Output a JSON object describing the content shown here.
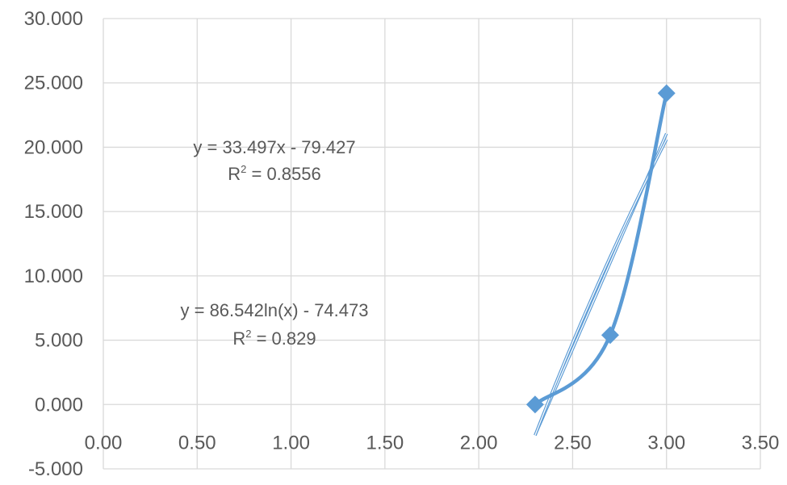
{
  "chart_data": {
    "type": "scatter",
    "title": "",
    "xlabel": "",
    "ylabel": "",
    "xlim": [
      0,
      3.5
    ],
    "ylim": [
      -5,
      30
    ],
    "xticks": [
      0,
      0.5,
      1,
      1.5,
      2,
      2.5,
      3,
      3.5
    ],
    "yticks": [
      -5,
      0,
      5,
      10,
      15,
      20,
      25,
      30
    ],
    "xtick_labels": [
      "0.00",
      "0.50",
      "1.00",
      "1.50",
      "2.00",
      "2.50",
      "3.00",
      "3.50"
    ],
    "ytick_labels": [
      "-5.000",
      "0.000",
      "5.000",
      "10.000",
      "15.000",
      "20.000",
      "25.000",
      "30.000"
    ],
    "grid": true,
    "series": [
      {
        "marker": "diamond",
        "smooth_line": true,
        "color": "#5B9BD5",
        "x": [
          2.3,
          2.7,
          3.0
        ],
        "y": [
          0.0,
          5.4,
          24.2
        ]
      }
    ],
    "trendlines": [
      {
        "kind": "linear",
        "color": "#5B9BD5",
        "equation": "y = 33.497x - 79.427",
        "r2_prefix": "R",
        "r2_sup": "2",
        "r2_value": " = 0.8556",
        "slope": 33.497,
        "intercept": -79.427,
        "x_range": [
          2.3,
          3.0
        ]
      },
      {
        "kind": "logarithmic",
        "color": "#5B9BD5",
        "equation": "y = 86.542ln(x) - 74.473",
        "r2_prefix": "R",
        "r2_sup": "2",
        "r2_value": " = 0.829",
        "coef": 86.542,
        "intercept": -74.473,
        "x_range": [
          2.3,
          3.0
        ]
      }
    ]
  }
}
